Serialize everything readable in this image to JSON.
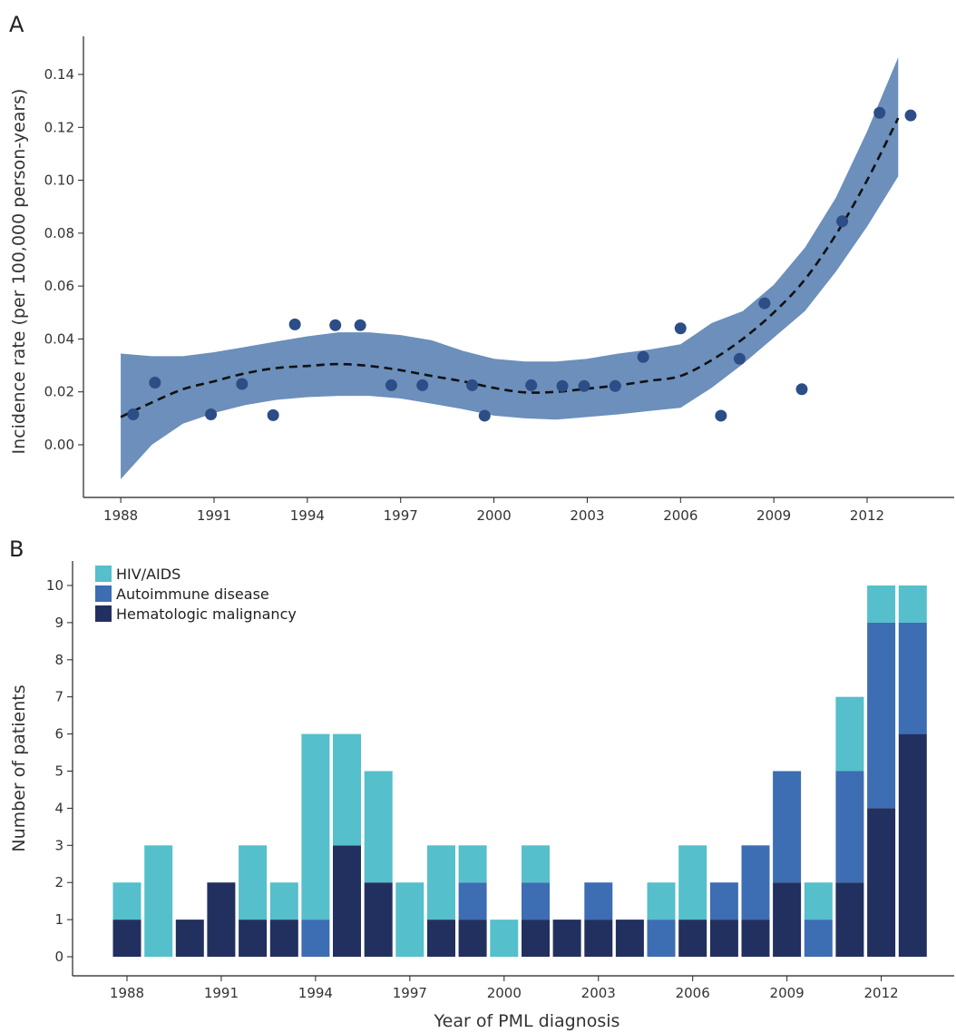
{
  "colors": {
    "hiv": "#55bfcb",
    "autoimmune": "#3d6db3",
    "hematologic": "#22305f",
    "band": "#6c8fbb",
    "points": "#2c4d86",
    "trend": "#111111"
  },
  "chart_data": [
    {
      "panel": "A",
      "type": "scatter",
      "ylabel": "Incidence rate (per 100,000 person-years)",
      "xlabel": "",
      "xlim": [
        1987.2,
        2014.5
      ],
      "ylim": [
        -0.02,
        0.15
      ],
      "xticks": [
        "1988",
        "1991",
        "1994",
        "1997",
        "2000",
        "2003",
        "2006",
        "2009",
        "2012"
      ],
      "yticks": [
        "0.00",
        "0.02",
        "0.04",
        "0.06",
        "0.08",
        "0.10",
        "0.12",
        "0.14"
      ],
      "grid": false,
      "points": [
        {
          "x": 1988.4,
          "y": 0.0115
        },
        {
          "x": 1989.1,
          "y": 0.0235
        },
        {
          "x": 1990.9,
          "y": 0.0115
        },
        {
          "x": 1991.9,
          "y": 0.023
        },
        {
          "x": 1992.9,
          "y": 0.0112
        },
        {
          "x": 1993.6,
          "y": 0.0455
        },
        {
          "x": 1994.9,
          "y": 0.0452
        },
        {
          "x": 1995.7,
          "y": 0.0452
        },
        {
          "x": 1996.7,
          "y": 0.0225
        },
        {
          "x": 1997.7,
          "y": 0.0225
        },
        {
          "x": 1999.3,
          "y": 0.0225
        },
        {
          "x": 1999.7,
          "y": 0.011
        },
        {
          "x": 2001.2,
          "y": 0.0225
        },
        {
          "x": 2002.2,
          "y": 0.0222
        },
        {
          "x": 2002.9,
          "y": 0.0222
        },
        {
          "x": 2003.9,
          "y": 0.0222
        },
        {
          "x": 2004.8,
          "y": 0.0332
        },
        {
          "x": 2006.0,
          "y": 0.044
        },
        {
          "x": 2007.3,
          "y": 0.011
        },
        {
          "x": 2007.9,
          "y": 0.0325
        },
        {
          "x": 2008.7,
          "y": 0.0535
        },
        {
          "x": 2009.9,
          "y": 0.021
        },
        {
          "x": 2011.2,
          "y": 0.0845
        },
        {
          "x": 2012.4,
          "y": 0.1255
        },
        {
          "x": 2013.4,
          "y": 0.1245
        }
      ],
      "trend": [
        {
          "x": 1988.0,
          "y": 0.0105,
          "lo": -0.013,
          "hi": 0.0345
        },
        {
          "x": 1989.0,
          "y": 0.016,
          "lo": 0.0,
          "hi": 0.0335
        },
        {
          "x": 1990.0,
          "y": 0.021,
          "lo": 0.008,
          "hi": 0.0335
        },
        {
          "x": 1991.0,
          "y": 0.024,
          "lo": 0.012,
          "hi": 0.035
        },
        {
          "x": 1992.0,
          "y": 0.027,
          "lo": 0.015,
          "hi": 0.037
        },
        {
          "x": 1993.0,
          "y": 0.029,
          "lo": 0.017,
          "hi": 0.039
        },
        {
          "x": 1994.0,
          "y": 0.0298,
          "lo": 0.018,
          "hi": 0.041
        },
        {
          "x": 1995.0,
          "y": 0.0305,
          "lo": 0.0185,
          "hi": 0.0425
        },
        {
          "x": 1996.0,
          "y": 0.0298,
          "lo": 0.0185,
          "hi": 0.0425
        },
        {
          "x": 1997.0,
          "y": 0.0282,
          "lo": 0.0175,
          "hi": 0.0415
        },
        {
          "x": 1998.0,
          "y": 0.026,
          "lo": 0.0155,
          "hi": 0.0395
        },
        {
          "x": 1999.0,
          "y": 0.024,
          "lo": 0.0135,
          "hi": 0.0355
        },
        {
          "x": 2000.0,
          "y": 0.0215,
          "lo": 0.011,
          "hi": 0.0325
        },
        {
          "x": 2001.0,
          "y": 0.0198,
          "lo": 0.01,
          "hi": 0.0315
        },
        {
          "x": 2002.0,
          "y": 0.02,
          "lo": 0.0095,
          "hi": 0.0315
        },
        {
          "x": 2003.0,
          "y": 0.0212,
          "lo": 0.0105,
          "hi": 0.0325
        },
        {
          "x": 2004.0,
          "y": 0.0225,
          "lo": 0.0115,
          "hi": 0.0345
        },
        {
          "x": 2005.0,
          "y": 0.0242,
          "lo": 0.0128,
          "hi": 0.036
        },
        {
          "x": 2006.0,
          "y": 0.026,
          "lo": 0.014,
          "hi": 0.038
        },
        {
          "x": 2007.0,
          "y": 0.032,
          "lo": 0.0215,
          "hi": 0.046
        },
        {
          "x": 2008.0,
          "y": 0.04,
          "lo": 0.0305,
          "hi": 0.0505
        },
        {
          "x": 2009.0,
          "y": 0.05,
          "lo": 0.0405,
          "hi": 0.0605
        },
        {
          "x": 2010.0,
          "y": 0.0625,
          "lo": 0.0505,
          "hi": 0.0745
        },
        {
          "x": 2011.0,
          "y": 0.0795,
          "lo": 0.0655,
          "hi": 0.0935
        },
        {
          "x": 2012.0,
          "y": 0.1,
          "lo": 0.0825,
          "hi": 0.1185
        },
        {
          "x": 2013.0,
          "y": 0.1235,
          "lo": 0.1015,
          "hi": 0.1465
        }
      ]
    },
    {
      "panel": "B",
      "type": "bar",
      "stacked": true,
      "xlabel": "Year of PML diagnosis",
      "ylabel": "Number of patients",
      "ylim": [
        0,
        10.5
      ],
      "xticks": [
        "1988",
        "1991",
        "1994",
        "1997",
        "2000",
        "2003",
        "2006",
        "2009",
        "2012"
      ],
      "yticks": [
        "0",
        "1",
        "2",
        "3",
        "4",
        "5",
        "6",
        "7",
        "8",
        "9",
        "10"
      ],
      "grid": false,
      "legend_position": "top-left",
      "categories": [
        "1988",
        "1989",
        "1990",
        "1991",
        "1992",
        "1993",
        "1994",
        "1995",
        "1996",
        "1997",
        "1998",
        "1999",
        "2000",
        "2001",
        "2002",
        "2003",
        "2004",
        "2005",
        "2006",
        "2007",
        "2008",
        "2009",
        "2010",
        "2011",
        "2012",
        "2013"
      ],
      "series": [
        {
          "name": "Hematologic malignancy",
          "color_key": "hematologic",
          "values": [
            1,
            0,
            1,
            2,
            1,
            1,
            0,
            3,
            2,
            0,
            1,
            1,
            0,
            1,
            1,
            1,
            1,
            0,
            1,
            1,
            1,
            2,
            0,
            2,
            4,
            6
          ]
        },
        {
          "name": "Autoimmune disease",
          "color_key": "autoimmune",
          "values": [
            0,
            0,
            0,
            0,
            0,
            0,
            1,
            0,
            0,
            0,
            0,
            1,
            0,
            1,
            0,
            1,
            0,
            1,
            0,
            1,
            2,
            3,
            1,
            3,
            5,
            3
          ]
        },
        {
          "name": "HIV/AIDS",
          "color_key": "hiv",
          "values": [
            1,
            3,
            0,
            0,
            2,
            1,
            5,
            3,
            3,
            2,
            2,
            1,
            1,
            1,
            0,
            0,
            0,
            1,
            2,
            0,
            0,
            0,
            1,
            2,
            1,
            1
          ]
        }
      ],
      "legend": [
        "HIV/AIDS",
        "Autoimmune disease",
        "Hematologic malignancy"
      ]
    }
  ],
  "labels": {
    "panel_a": "A",
    "panel_b": "B"
  }
}
